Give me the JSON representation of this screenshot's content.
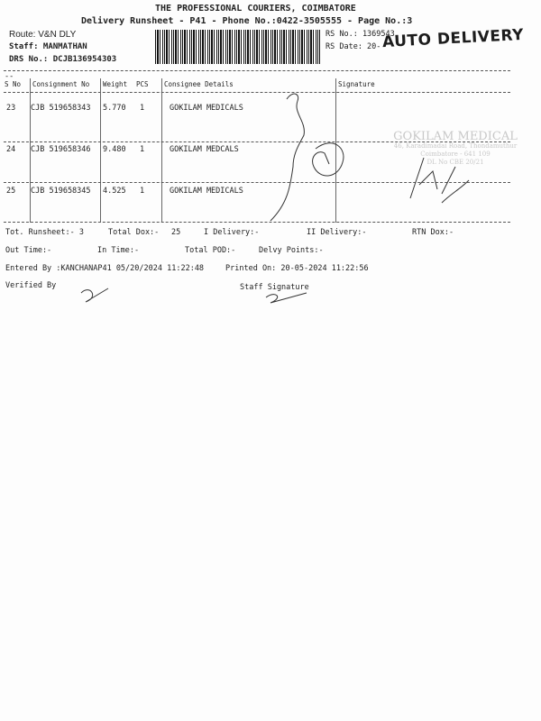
{
  "header": {
    "company": "THE PROFESSIONAL COURIERS, COIMBATORE",
    "subtitle": "Delivery Runsheet - P41 - Phone No.:0422-3505555 - Page No.:3",
    "route": "Route: V&N DLY",
    "staff": "Staff: MANMATHAN",
    "drs": "DRS No.: DCJB136954303",
    "rs_no": "RS No.: 1369543",
    "rs_date": "RS Date: 20-",
    "stamp": "AUTO DELIVERY"
  },
  "table": {
    "columns": [
      "S No",
      "Consignment No",
      "Weight",
      "PCS",
      "Consignee Details",
      "Signature"
    ],
    "rows": [
      {
        "sno": "23",
        "consignment": "CJB 519658343",
        "weight": "5.770",
        "pcs": "1",
        "consignee": "GOKILAM MEDICALS"
      },
      {
        "sno": "24",
        "consignment": "CJB 519658346",
        "weight": "9.480",
        "pcs": "1",
        "consignee": "GOKILAM MEDCALS"
      },
      {
        "sno": "25",
        "consignment": "CJB 519658345",
        "weight": "4.525",
        "pcs": "1",
        "consignee": "GOKILAM MEDICALS"
      }
    ]
  },
  "receiver_stamp": [
    "GOKILAM MEDICAL",
    "46, Karadimadai Road, Thondamuthur",
    "Coimbatore - 641 109",
    "DL No CBE 20/21"
  ],
  "totals": {
    "runsheet": "Tot. Runsheet:- 3",
    "total_dox_label": "Total Dox:-",
    "total_dox": "25",
    "i_delivery": "I Delivery:-",
    "ii_delivery": "II Delivery:-",
    "rtn_dox": "RTN Dox:-",
    "out_time": "Out Time:-",
    "in_time": "In Time:-",
    "total_pod": "Total POD:-",
    "delvy_points": "Delvy Points:-"
  },
  "footer": {
    "entered_by": "Entered By :KANCHANAP41 05/20/2024 11:22:48",
    "printed_on": "Printed On: 20-05-2024 11:22:56",
    "verified_by": "Verified By",
    "staff_signature": "Staff Signature"
  }
}
